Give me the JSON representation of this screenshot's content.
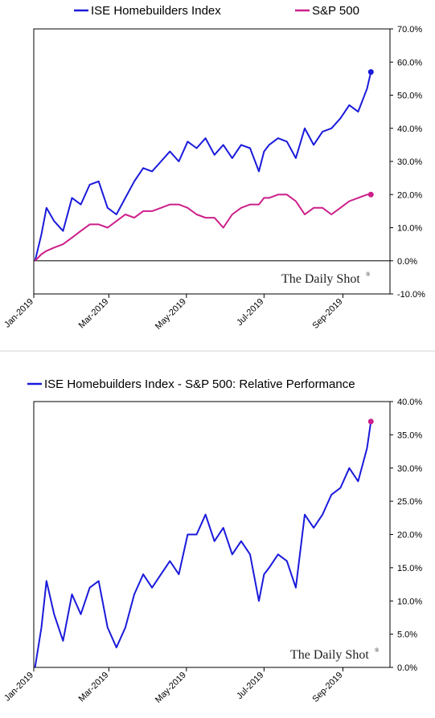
{
  "chart_data": [
    {
      "type": "line",
      "legend": [
        "ISE Homebuilders Index",
        "S&P 500"
      ],
      "colors": [
        "#1a1adb",
        "#cc1f8a"
      ],
      "x_ticks": [
        "Jan-2019",
        "Mar-2019",
        "May-2019",
        "Jul-2019",
        "Sep-2019"
      ],
      "y_ticks": [
        "-10.0%",
        "0.0%",
        "10.0%",
        "20.0%",
        "30.0%",
        "40.0%",
        "50.0%",
        "60.0%",
        "70.0%"
      ],
      "ylim": [
        -10,
        70
      ],
      "y_axis_side": "right",
      "legend_position": "top",
      "grid": false,
      "watermark": "The Daily Shot",
      "watermark_mark": "®",
      "series": [
        {
          "name": "ISE Homebuilders Index",
          "x": [
            "2019-01-02",
            "2019-01-07",
            "2019-01-11",
            "2019-01-17",
            "2019-01-24",
            "2019-01-31",
            "2019-02-07",
            "2019-02-14",
            "2019-02-21",
            "2019-02-28",
            "2019-03-07",
            "2019-03-14",
            "2019-03-21",
            "2019-03-28",
            "2019-04-04",
            "2019-04-11",
            "2019-04-18",
            "2019-04-25",
            "2019-05-02",
            "2019-05-09",
            "2019-05-16",
            "2019-05-23",
            "2019-05-30",
            "2019-06-06",
            "2019-06-13",
            "2019-06-20",
            "2019-06-27",
            "2019-07-01",
            "2019-07-05",
            "2019-07-12",
            "2019-07-19",
            "2019-07-26",
            "2019-08-02",
            "2019-08-09",
            "2019-08-16",
            "2019-08-23",
            "2019-08-30",
            "2019-09-06",
            "2019-09-13",
            "2019-09-20",
            "2019-09-23"
          ],
          "y": [
            0,
            8,
            16,
            12,
            9,
            19,
            17,
            23,
            24,
            16,
            14,
            19,
            24,
            28,
            27,
            30,
            33,
            30,
            36,
            34,
            37,
            32,
            35,
            31,
            35,
            34,
            27,
            33,
            35,
            37,
            36,
            31,
            40,
            35,
            39,
            40,
            43,
            47,
            45,
            52,
            57
          ]
        },
        {
          "name": "S&P 500",
          "x": [
            "2019-01-02",
            "2019-01-07",
            "2019-01-11",
            "2019-01-17",
            "2019-01-24",
            "2019-01-31",
            "2019-02-07",
            "2019-02-14",
            "2019-02-21",
            "2019-02-28",
            "2019-03-07",
            "2019-03-14",
            "2019-03-21",
            "2019-03-28",
            "2019-04-04",
            "2019-04-11",
            "2019-04-18",
            "2019-04-25",
            "2019-05-02",
            "2019-05-09",
            "2019-05-16",
            "2019-05-23",
            "2019-05-30",
            "2019-06-06",
            "2019-06-13",
            "2019-06-20",
            "2019-06-27",
            "2019-07-01",
            "2019-07-05",
            "2019-07-12",
            "2019-07-19",
            "2019-07-26",
            "2019-08-02",
            "2019-08-09",
            "2019-08-16",
            "2019-08-23",
            "2019-08-30",
            "2019-09-06",
            "2019-09-13",
            "2019-09-20",
            "2019-09-23"
          ],
          "y": [
            0,
            2,
            3,
            4,
            5,
            7,
            9,
            11,
            11,
            10,
            12,
            14,
            13,
            15,
            15,
            16,
            17,
            17,
            16,
            14,
            13,
            13,
            10,
            14,
            16,
            17,
            17,
            19,
            19,
            20,
            20,
            18,
            14,
            16,
            16,
            14,
            16,
            18,
            19,
            20,
            20
          ]
        }
      ]
    },
    {
      "type": "line",
      "legend": [
        "ISE Homebuilders Index - S&P 500:   Relative Performance"
      ],
      "colors": [
        "#1a1adb",
        "#cc1f8a"
      ],
      "x_ticks": [
        "Jan-2019",
        "Mar-2019",
        "May-2019",
        "Jul-2019",
        "Sep-2019"
      ],
      "y_ticks": [
        "0.0%",
        "5.0%",
        "10.0%",
        "15.0%",
        "20.0%",
        "25.0%",
        "30.0%",
        "35.0%",
        "40.0%"
      ],
      "ylim": [
        0,
        40
      ],
      "y_axis_side": "right",
      "legend_position": "top",
      "grid": false,
      "watermark": "The Daily Shot",
      "watermark_mark": "®",
      "series": [
        {
          "name": "ISE Homebuilders Index - S&P 500:   Relative Performance",
          "x": [
            "2019-01-02",
            "2019-01-07",
            "2019-01-11",
            "2019-01-17",
            "2019-01-24",
            "2019-01-31",
            "2019-02-07",
            "2019-02-14",
            "2019-02-21",
            "2019-02-28",
            "2019-03-07",
            "2019-03-14",
            "2019-03-21",
            "2019-03-28",
            "2019-04-04",
            "2019-04-11",
            "2019-04-18",
            "2019-04-25",
            "2019-05-02",
            "2019-05-09",
            "2019-05-16",
            "2019-05-23",
            "2019-05-30",
            "2019-06-06",
            "2019-06-13",
            "2019-06-20",
            "2019-06-27",
            "2019-07-01",
            "2019-07-05",
            "2019-07-12",
            "2019-07-19",
            "2019-07-26",
            "2019-08-02",
            "2019-08-09",
            "2019-08-16",
            "2019-08-23",
            "2019-08-30",
            "2019-09-06",
            "2019-09-13",
            "2019-09-20",
            "2019-09-23"
          ],
          "y": [
            0,
            6,
            13,
            8,
            4,
            11,
            8,
            12,
            13,
            6,
            3,
            6,
            11,
            14,
            12,
            14,
            16,
            14,
            20,
            20,
            23,
            19,
            21,
            17,
            19,
            17,
            10,
            14,
            15,
            17,
            16,
            12,
            23,
            21,
            23,
            26,
            27,
            30,
            28,
            33,
            37
          ]
        }
      ]
    }
  ]
}
